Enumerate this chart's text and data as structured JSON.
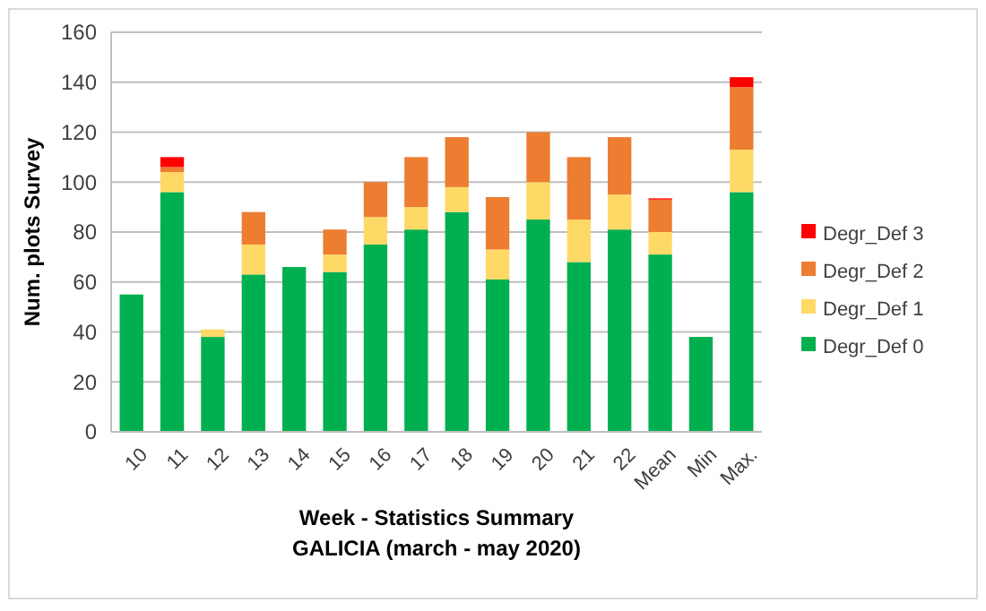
{
  "chart_data": {
    "type": "bar",
    "stacked": true,
    "xlabel": "Week - Statistics Summary\nGALICIA (march - may 2020)",
    "ylabel": "Num. plots Survey",
    "categories": [
      "10",
      "11",
      "12",
      "13",
      "14",
      "15",
      "16",
      "17",
      "18",
      "19",
      "20",
      "21",
      "22",
      "Mean",
      "Min",
      "Max."
    ],
    "series": [
      {
        "name": "Degr_Def 0",
        "color": "#00b050",
        "values": [
          55,
          96,
          38,
          63,
          66,
          64,
          75,
          81,
          88,
          61,
          85,
          68,
          81,
          71,
          38,
          96
        ]
      },
      {
        "name": "Degr_Def 1",
        "color": "#ffd966",
        "values": [
          0,
          8,
          3,
          12,
          0,
          7,
          11,
          9,
          10,
          12,
          15,
          17,
          14,
          9,
          0,
          17
        ]
      },
      {
        "name": "Degr_Def 2",
        "color": "#ed7d31",
        "values": [
          0,
          2,
          0,
          13,
          0,
          10,
          14,
          20,
          20,
          21,
          20,
          25,
          23,
          13,
          0,
          25
        ]
      },
      {
        "name": "Degr_Def 3",
        "color": "#ff0000",
        "values": [
          0,
          4,
          0,
          0,
          0,
          0,
          0,
          0,
          0,
          0,
          0,
          0,
          0,
          0.5,
          0,
          4
        ]
      }
    ],
    "ylim": [
      0,
      160
    ],
    "yticks": [
      0,
      20,
      40,
      60,
      80,
      100,
      120,
      140,
      160
    ],
    "grid": "y",
    "legend": "right"
  }
}
